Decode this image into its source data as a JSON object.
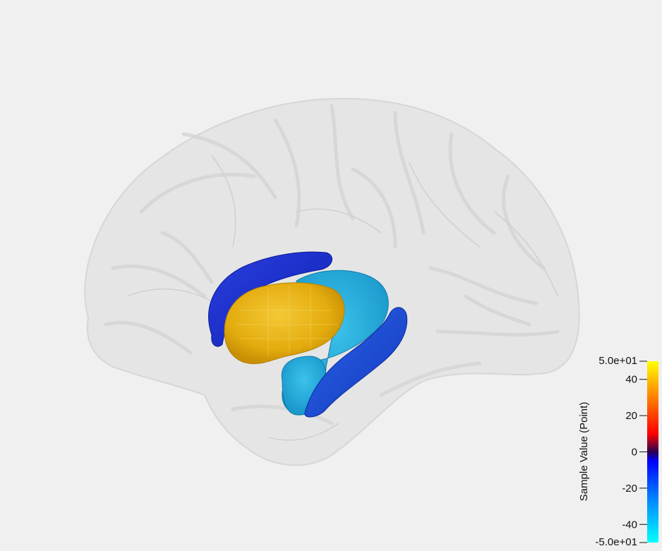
{
  "viewer": {
    "background": "#f0f0f0"
  },
  "scene": {
    "brain_surface_color": "#e2e2e2",
    "structures": [
      {
        "name": "caudate",
        "color": "#1428c8"
      },
      {
        "name": "putamen",
        "color": "#e8b312"
      },
      {
        "name": "hippocampus",
        "color": "#1a4fd6"
      },
      {
        "name": "amygdala-thalamus",
        "color": "#1ca8d8"
      }
    ]
  },
  "scalar_bar": {
    "title": "Sample Value (Point)",
    "range_max_label": "5.0e+01",
    "range_min_label": "-5.0e+01",
    "range": [
      -50,
      50
    ],
    "ticks": [
      {
        "label": "40",
        "value": 40
      },
      {
        "label": "20",
        "value": 20
      },
      {
        "label": "0",
        "value": 0
      },
      {
        "label": "-20",
        "value": -20
      },
      {
        "label": "-40",
        "value": -40
      }
    ],
    "colormap": [
      {
        "value": 50,
        "color": "#ffff00"
      },
      {
        "value": 30,
        "color": "#ff8000"
      },
      {
        "value": 10,
        "color": "#ff0000"
      },
      {
        "value": 0,
        "color": "#2a0050"
      },
      {
        "value": -5,
        "color": "#0000ff"
      },
      {
        "value": -25,
        "color": "#0080ff"
      },
      {
        "value": -50,
        "color": "#00ffff"
      }
    ]
  }
}
